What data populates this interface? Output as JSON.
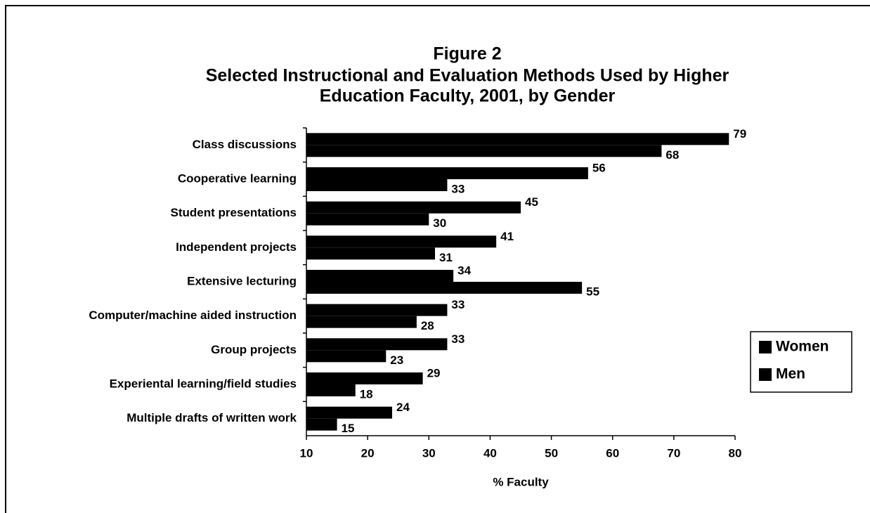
{
  "chart_data": {
    "type": "bar",
    "orientation": "horizontal",
    "title": "Figure 2",
    "subtitle": [
      "Selected Instructional and Evaluation Methods Used by Higher",
      "Education Faculty, 2001, by Gender"
    ],
    "x_label": "% Faculty",
    "categories": [
      "Class discussions",
      "Cooperative learning",
      "Student presentations",
      "Independent projects",
      "Extensive lecturing",
      "Computer/machine aided instruction",
      "Group projects",
      "Experiental learning/field studies",
      "Multiple drafts of written work"
    ],
    "series": [
      {
        "name": "Women",
        "color": "#000000",
        "values": [
          79,
          56,
          45,
          41,
          34,
          33,
          33,
          29,
          24
        ]
      },
      {
        "name": "Men",
        "color": "#000000",
        "values": [
          68,
          33,
          30,
          31,
          55,
          28,
          23,
          18,
          15
        ]
      }
    ],
    "xlim": [
      10,
      80
    ],
    "xticks": [
      10,
      20,
      30,
      40,
      50,
      60,
      70,
      80
    ],
    "legend": "right",
    "grid": false
  }
}
